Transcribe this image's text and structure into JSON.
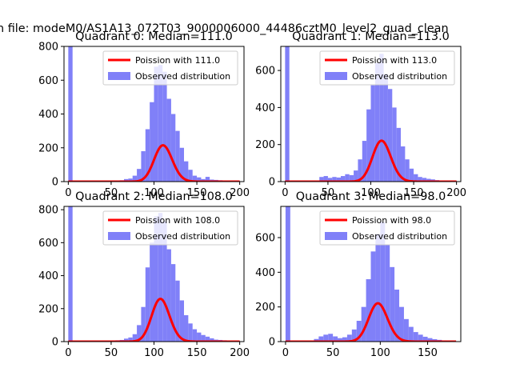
{
  "figure": {
    "suptitle": "n file: modeM0/AS1A13_072T03_9000006000_44486cztM0_level2_quad_clean"
  },
  "chart_data": [
    {
      "type": "bar",
      "title": "Quadrant 0: Median=111.0",
      "median": 111.0,
      "xlim": [
        -5,
        205
      ],
      "ylim": [
        0,
        800
      ],
      "xticks": [
        0,
        50,
        100,
        150,
        200
      ],
      "yticks": [
        0,
        200,
        400,
        600,
        800
      ],
      "bin_width": 5,
      "hist_x": [
        0,
        35,
        40,
        45,
        50,
        55,
        60,
        65,
        70,
        75,
        80,
        85,
        90,
        95,
        100,
        105,
        110,
        115,
        120,
        125,
        130,
        135,
        140,
        145,
        150,
        155,
        160,
        165,
        170,
        175,
        180,
        185,
        190,
        195
      ],
      "hist_y": [
        800,
        2,
        4,
        3,
        3,
        5,
        8,
        15,
        18,
        35,
        75,
        180,
        310,
        470,
        680,
        690,
        650,
        490,
        400,
        300,
        200,
        120,
        70,
        35,
        25,
        15,
        28,
        12,
        10,
        8,
        6,
        4,
        3,
        2
      ],
      "poisson_lambda": 111.0,
      "legend": [
        "Poission with 111.0",
        "Observed distribution"
      ],
      "legend_position": "upper-right"
    },
    {
      "type": "bar",
      "title": "Quadrant 1: Median=113.0",
      "median": 113.0,
      "xlim": [
        -5,
        205
      ],
      "ylim": [
        0,
        730
      ],
      "xticks": [
        0,
        50,
        100,
        150,
        200
      ],
      "yticks": [
        0,
        200,
        400,
        600
      ],
      "bin_width": 5,
      "hist_x": [
        0,
        35,
        40,
        45,
        50,
        55,
        60,
        65,
        70,
        75,
        80,
        85,
        90,
        95,
        100,
        105,
        110,
        115,
        120,
        125,
        130,
        135,
        140,
        145,
        150,
        155,
        160,
        165,
        170,
        175,
        180,
        185,
        190,
        195
      ],
      "hist_y": [
        730,
        5,
        25,
        30,
        20,
        25,
        22,
        30,
        40,
        35,
        60,
        120,
        220,
        390,
        520,
        640,
        690,
        580,
        500,
        400,
        290,
        190,
        120,
        70,
        40,
        25,
        20,
        15,
        12,
        8,
        6,
        5,
        3,
        2
      ],
      "poisson_lambda": 113.0,
      "legend": [
        "Poission with 113.0",
        "Observed distribution"
      ],
      "legend_position": "upper-right"
    },
    {
      "type": "bar",
      "title": "Quadrant 2: Median=108.0",
      "median": 108.0,
      "xlim": [
        -5,
        205
      ],
      "ylim": [
        0,
        820
      ],
      "xticks": [
        0,
        50,
        100,
        150,
        200
      ],
      "yticks": [
        0,
        200,
        400,
        600,
        800
      ],
      "bin_width": 5,
      "hist_x": [
        0,
        35,
        40,
        45,
        50,
        55,
        60,
        65,
        70,
        75,
        80,
        85,
        90,
        95,
        100,
        105,
        110,
        115,
        120,
        125,
        130,
        135,
        140,
        145,
        150,
        155,
        160,
        165,
        170,
        175,
        180,
        185,
        190,
        195
      ],
      "hist_y": [
        820,
        3,
        5,
        4,
        6,
        8,
        10,
        18,
        25,
        45,
        100,
        210,
        450,
        600,
        760,
        780,
        730,
        560,
        470,
        370,
        250,
        160,
        110,
        75,
        55,
        40,
        30,
        20,
        12,
        10,
        8,
        6,
        4,
        3
      ],
      "poisson_lambda": 108.0,
      "legend": [
        "Poission with 108.0",
        "Observed distribution"
      ],
      "legend_position": "upper-right"
    },
    {
      "type": "bar",
      "title": "Quadrant 3: Median=98.0",
      "median": 98.0,
      "xlim": [
        -5,
        185
      ],
      "ylim": [
        0,
        780
      ],
      "xticks": [
        0,
        50,
        100,
        150
      ],
      "yticks": [
        0,
        200,
        400,
        600
      ],
      "bin_width": 5,
      "hist_x": [
        0,
        30,
        35,
        40,
        45,
        50,
        55,
        60,
        65,
        70,
        75,
        80,
        85,
        90,
        95,
        100,
        105,
        110,
        115,
        120,
        125,
        130,
        135,
        140,
        145,
        150,
        155,
        160,
        165,
        170,
        175
      ],
      "hist_y": [
        780,
        15,
        30,
        40,
        45,
        30,
        20,
        25,
        40,
        70,
        120,
        200,
        360,
        520,
        620,
        690,
        560,
        430,
        300,
        200,
        130,
        85,
        55,
        40,
        28,
        20,
        14,
        10,
        7,
        5,
        3
      ],
      "poisson_lambda": 98.0,
      "legend": [
        "Poission with 98.0",
        "Observed distribution"
      ],
      "legend_position": "upper-right"
    }
  ],
  "colors": {
    "hist": "#8080f8",
    "poisson": "#ff0000",
    "axes": "#000000"
  }
}
